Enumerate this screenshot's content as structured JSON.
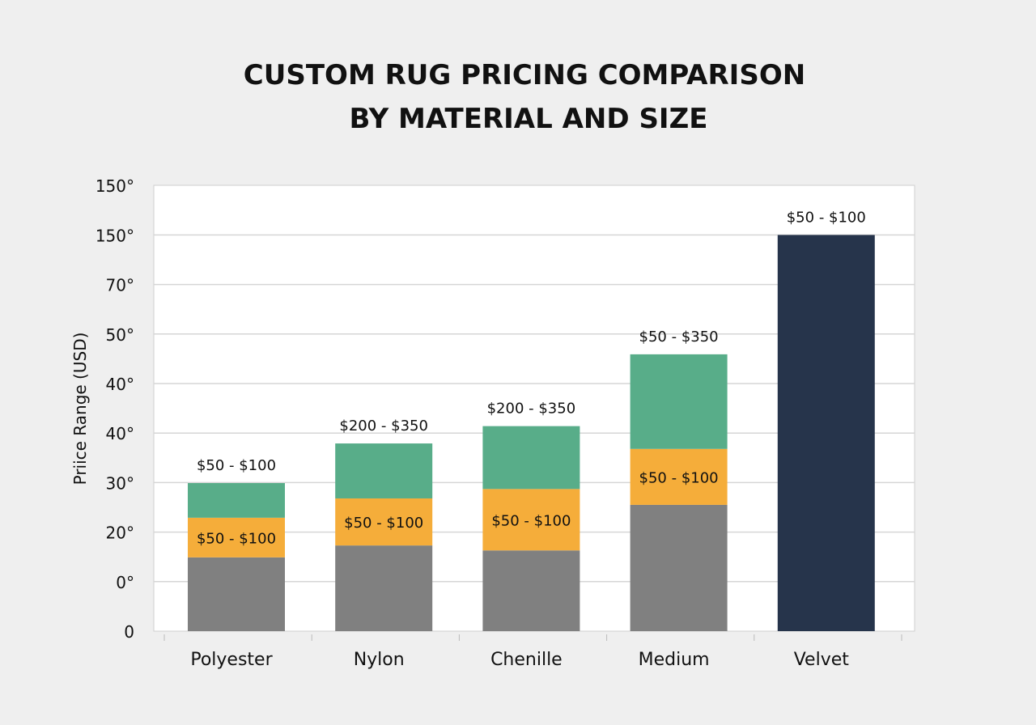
{
  "chart_data": {
    "type": "bar",
    "stacked": true,
    "title": [
      "CUSTOM RUG PRICING COMPARISON",
      "BY MATERIAL AND SIZE"
    ],
    "xlabel": "",
    "ylabel": "Priice Range (USD)",
    "y_tick_labels": [
      "0",
      "0°",
      "20°",
      "30°",
      "40°",
      "40°",
      "50°",
      "70°",
      "150°",
      "150°"
    ],
    "ylim_tick_index": [
      0,
      9
    ],
    "grid": true,
    "categories": [
      "Polyester",
      "Nylon",
      "Chenille",
      "Medium",
      "Velvet"
    ],
    "series": [
      {
        "color": "#808080",
        "values": [
          1.49,
          1.73,
          1.63,
          2.55,
          0
        ]
      },
      {
        "color": "#f5ad3a",
        "values": [
          0.8,
          0.95,
          1.24,
          1.13,
          0
        ],
        "labels": [
          "$50 - $100",
          "$50 - $100",
          "$50 - $100",
          "$50 - $100",
          ""
        ]
      },
      {
        "color": "#58ad89",
        "values": [
          0.7,
          1.11,
          1.27,
          1.91,
          0
        ]
      },
      {
        "color": "#26344b",
        "values": [
          0,
          0,
          0,
          0,
          8.0
        ]
      }
    ],
    "top_labels": [
      "$50 - $100",
      "$200 - $350",
      "$200 - $350",
      "$50 - $350",
      "$50 - $100"
    ]
  }
}
